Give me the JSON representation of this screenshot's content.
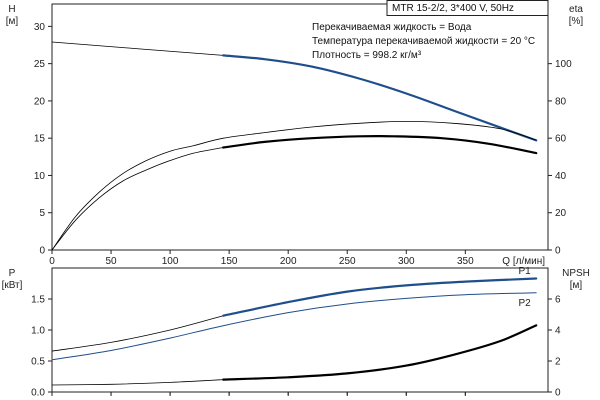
{
  "colors": {
    "accent": "#1f4e8c",
    "ink": "#000000",
    "axis": "#222222",
    "bg": "#ffffff"
  },
  "header": {
    "model": "MTR 15-2/2, 3*400 V, 50Hz",
    "liquid": "Перекачиваемая жидкость = Вода",
    "temperature": "Температура перекачиваемой жидкости = 20 °C",
    "density": "Плотность = 998.2 кг/м³"
  },
  "chart_data": [
    {
      "type": "line",
      "name": "head-eta",
      "xlabel": "Q [л/мин]",
      "y_left_label": [
        "H",
        "[м]"
      ],
      "y_right_label": [
        "eta",
        "[%]"
      ],
      "xlim": [
        0,
        420
      ],
      "ylim_left": [
        0,
        33
      ],
      "ylim_right": [
        0,
        132
      ],
      "x_ticks": [
        0,
        50,
        100,
        150,
        200,
        250,
        300,
        350
      ],
      "x_tick_labels": [
        "0",
        "50",
        "100",
        "150",
        "200",
        "250",
        "300",
        "350",
        "Q [л/мин]"
      ],
      "y_left_ticks": [
        0,
        5,
        10,
        15,
        20,
        25,
        30
      ],
      "y_right_ticks": [
        0,
        20,
        40,
        60,
        80,
        100
      ],
      "series": [
        {
          "axis": "left",
          "style": "thin",
          "x": [
            0,
            145
          ],
          "y": [
            27.9,
            26.1
          ]
        },
        {
          "axis": "left",
          "style": "thick-accent",
          "x": [
            145,
            180,
            220,
            260,
            300,
            340,
            380,
            410
          ],
          "y": [
            26.1,
            25.6,
            24.6,
            23.0,
            21.0,
            18.7,
            16.4,
            14.7
          ]
        },
        {
          "axis": "right",
          "style": "thin",
          "x": [
            0,
            20,
            40,
            60,
            80,
            100,
            120,
            145
          ],
          "y": [
            0,
            16,
            28,
            37,
            43,
            48,
            52,
            55
          ]
        },
        {
          "axis": "right",
          "style": "thick",
          "x": [
            145,
            180,
            220,
            260,
            290,
            330,
            370,
            410
          ],
          "y": [
            55,
            58,
            60,
            61,
            61,
            60,
            57,
            52
          ]
        },
        {
          "axis": "right",
          "style": "thin",
          "x": [
            0,
            20,
            40,
            60,
            80,
            100,
            120,
            145,
            180,
            220,
            260,
            300,
            340,
            380,
            410
          ],
          "y": [
            0,
            18,
            31,
            41,
            48,
            53,
            56,
            60,
            63,
            66,
            68,
            69,
            68,
            65,
            59
          ]
        }
      ]
    },
    {
      "type": "line",
      "name": "power-npsh",
      "xlabel": "",
      "y_left_label": [
        "P",
        "[кВт]"
      ],
      "y_right_label": [
        "NPSH",
        "[м]"
      ],
      "xlim": [
        0,
        420
      ],
      "ylim_left": [
        0,
        2.0
      ],
      "ylim_right": [
        0,
        8
      ],
      "x_ticks": [
        0,
        50,
        100,
        150,
        200,
        250,
        300,
        350
      ],
      "y_left_ticks": [
        0,
        0.5,
        1.0,
        1.5
      ],
      "y_left_tick_labels": [
        "0.0",
        "0.5",
        "1.0",
        "1.5"
      ],
      "y_right_ticks": [
        0,
        2,
        4,
        6
      ],
      "series": [
        {
          "name": "P1",
          "axis": "left",
          "style": "thin",
          "x": [
            0,
            50,
            100,
            145
          ],
          "y": [
            0.66,
            0.8,
            1.0,
            1.23
          ]
        },
        {
          "name": "P1",
          "axis": "left",
          "style": "thick-accent",
          "x": [
            145,
            200,
            250,
            300,
            350,
            410
          ],
          "y": [
            1.23,
            1.45,
            1.62,
            1.72,
            1.78,
            1.83
          ]
        },
        {
          "name": "P2",
          "axis": "left",
          "style": "thin-accent",
          "x": [
            0,
            50,
            100,
            145,
            200,
            250,
            300,
            350,
            410
          ],
          "y": [
            0.52,
            0.67,
            0.87,
            1.07,
            1.28,
            1.42,
            1.51,
            1.57,
            1.6
          ]
        },
        {
          "axis": "right",
          "style": "thin",
          "x": [
            0,
            50,
            100,
            145
          ],
          "y": [
            0.45,
            0.5,
            0.62,
            0.8
          ]
        },
        {
          "axis": "right",
          "style": "thick",
          "x": [
            145,
            200,
            250,
            300,
            340,
            380,
            410
          ],
          "y": [
            0.8,
            0.95,
            1.2,
            1.7,
            2.4,
            3.3,
            4.3
          ]
        }
      ],
      "annotations": [
        {
          "text": "P1",
          "x": 395,
          "y": 1.97
        },
        {
          "text": "P2",
          "x": 395,
          "y": 1.45
        }
      ]
    }
  ]
}
